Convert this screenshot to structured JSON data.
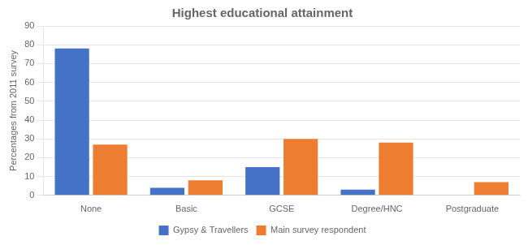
{
  "chart_data": {
    "type": "bar",
    "title": "Highest educational attainment",
    "ylabel": "Percentages from 2011 survey",
    "categories": [
      "None",
      "Basic",
      "GCSE",
      "Degree/HNC",
      "Postgraduate"
    ],
    "series": [
      {
        "name": "Gypsy & Travellers",
        "color": "#4472C4",
        "values": [
          78,
          4,
          15,
          3,
          0
        ]
      },
      {
        "name": "Main survey respondent",
        "color": "#ED7D31",
        "values": [
          27,
          8,
          30,
          28,
          7
        ]
      }
    ],
    "ylim": [
      0,
      90
    ],
    "yticks": [
      0,
      10,
      20,
      30,
      40,
      50,
      60,
      70,
      80,
      90
    ],
    "grid": true,
    "legend": "bottom"
  }
}
